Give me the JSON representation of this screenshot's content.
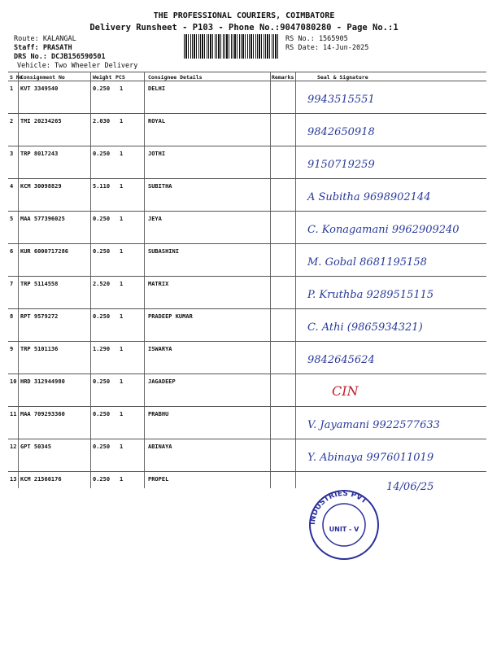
{
  "header": {
    "company": "THE PROFESSIONAL COURIERS, COIMBATORE",
    "subtitle": "Delivery Runsheet - P103 - Phone No.:9047080280 - Page No.:1",
    "route": "Route: KALANGAL",
    "staff": "Staff: PRASATH",
    "drs_no": "DRS No.: DCJB156590501",
    "vehicle": "Vehicle: Two Wheeler Delivery",
    "rs_no": "RS No.: 1565905",
    "rs_date": "RS Date: 14-Jun-2025"
  },
  "table": {
    "columns": [
      "S No",
      "Consignment No",
      "Weight",
      "PCS",
      "Consignee Details",
      "Remarks",
      "Seal & Signature"
    ],
    "rows": [
      {
        "sno": "1",
        "consignment": "KVT 3349540",
        "weight": "0.250",
        "pcs": "1",
        "consignee": "DELHI",
        "signature": "9943515551"
      },
      {
        "sno": "2",
        "consignment": "TMI 20234265",
        "weight": "2.030",
        "pcs": "1",
        "consignee": "ROYAL",
        "signature": "9842650918"
      },
      {
        "sno": "3",
        "consignment": "TRP 8017243",
        "weight": "0.250",
        "pcs": "1",
        "consignee": "JOTHI",
        "signature": "9150719259"
      },
      {
        "sno": "4",
        "consignment": "KCM 30098829",
        "weight": "5.110",
        "pcs": "1",
        "consignee": "SUBITHA",
        "signature": "A Subitha 9698902144"
      },
      {
        "sno": "5",
        "consignment": "MAA 577396025",
        "weight": "0.250",
        "pcs": "1",
        "consignee": "JEYA",
        "signature": "C. Konagamani 9962909240"
      },
      {
        "sno": "6",
        "consignment": "KUR 6000717286",
        "weight": "0.250",
        "pcs": "1",
        "consignee": "SUBASHINI",
        "signature": "M. Gobal 8681195158"
      },
      {
        "sno": "7",
        "consignment": "TRP 5114558",
        "weight": "2.520",
        "pcs": "1",
        "consignee": "MATRIX",
        "signature": "P. Kruthba 9289515115"
      },
      {
        "sno": "8",
        "consignment": "RPT 9579272",
        "weight": "0.250",
        "pcs": "1",
        "consignee": "PRADEEP KUMAR",
        "signature": "C. Athi (9865934321)"
      },
      {
        "sno": "9",
        "consignment": "TRP 5101136",
        "weight": "1.290",
        "pcs": "1",
        "consignee": "ISWARYA",
        "signature": "9842645624"
      },
      {
        "sno": "10",
        "consignment": "HRD 312944980",
        "weight": "0.250",
        "pcs": "1",
        "consignee": "JAGADEEP",
        "signature": "CIN"
      },
      {
        "sno": "11",
        "consignment": "MAA 709293360",
        "weight": "0.250",
        "pcs": "1",
        "consignee": "PRABHU",
        "signature": "V. Jayamani 9922577633"
      },
      {
        "sno": "12",
        "consignment": "GPT 50345",
        "weight": "0.250",
        "pcs": "1",
        "consignee": "ABINAYA",
        "signature": "Y. Abinaya 9976011019"
      },
      {
        "sno": "13",
        "consignment": "KCM 21560176",
        "weight": "0.250",
        "pcs": "1",
        "consignee": "PROPEL",
        "signature": "14/06/25"
      }
    ]
  },
  "stamp": {
    "text": "INDUSTRIES PVT",
    "unit": "UNIT - V",
    "ink": "#2a2f9a"
  },
  "colors": {
    "ink_blue": "#2a3a9a",
    "ink_red": "#c0202a"
  }
}
